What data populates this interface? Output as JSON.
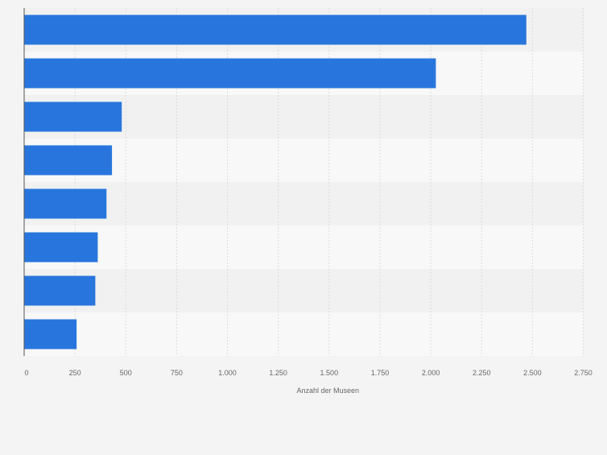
{
  "colors": {
    "background": "#f4f4f4",
    "band_even": "#f1f1f1",
    "band_odd": "#f8f8f8",
    "grid": "#dcdcdc",
    "bar": "#2876dd",
    "axis_line": "#555555",
    "tick_text": "#666666",
    "label_text": "#666666"
  },
  "chart_data": {
    "type": "bar",
    "orientation": "horizontal",
    "title": "",
    "xlabel": "Anzahl der Museen",
    "ylabel": "",
    "categories": [
      "",
      "",
      "",
      "",
      "",
      "",
      "",
      ""
    ],
    "values": [
      2470,
      2025,
      480,
      432,
      405,
      362,
      350,
      258
    ],
    "xlim": [
      0,
      2750
    ],
    "xticks": [
      0,
      250,
      500,
      750,
      1000,
      1250,
      1500,
      1750,
      2000,
      2250,
      2500,
      2750
    ],
    "xtick_labels": [
      "0",
      "250",
      "500",
      "750",
      "1.000",
      "1.250",
      "1.500",
      "1.750",
      "2.000",
      "2.250",
      "2.500",
      "2.750"
    ],
    "grid": true,
    "legend": false
  }
}
